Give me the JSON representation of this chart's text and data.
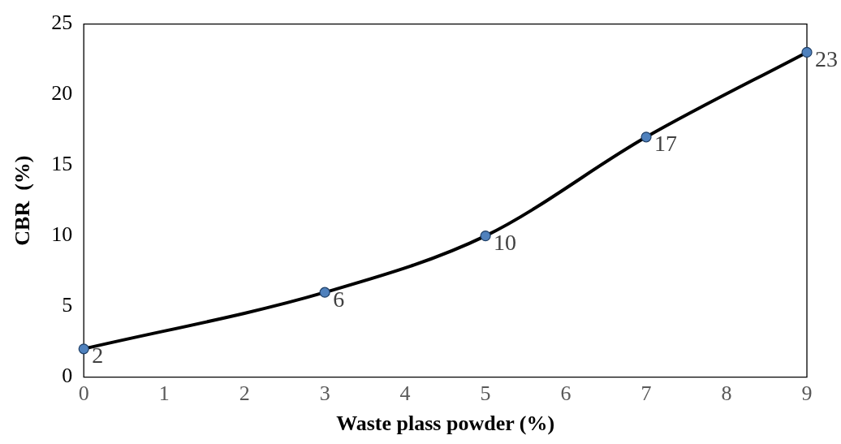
{
  "chart_data": {
    "type": "line",
    "xlabel": "Waste plass powder (%)",
    "ylabel": "CBR  (%)",
    "x": [
      0,
      3,
      5,
      7,
      9
    ],
    "series": [
      {
        "color": "#000000",
        "colors": [
          "#4f81bd",
          "#4f81bd",
          "#4f81bd",
          "#4f81bd",
          "#4f81bd"
        ],
        "values": [
          2,
          6,
          10,
          17,
          23
        ]
      }
    ],
    "xlim": [
      0,
      9
    ],
    "xticks": [
      0,
      1,
      2,
      3,
      4,
      5,
      6,
      7,
      8,
      9
    ],
    "ylim": [
      0,
      25
    ],
    "yticks": [
      0,
      5,
      10,
      15,
      20,
      25
    ],
    "marker": "circle",
    "line_style": "solid",
    "data_labels": true,
    "grid": false,
    "legend": false
  }
}
